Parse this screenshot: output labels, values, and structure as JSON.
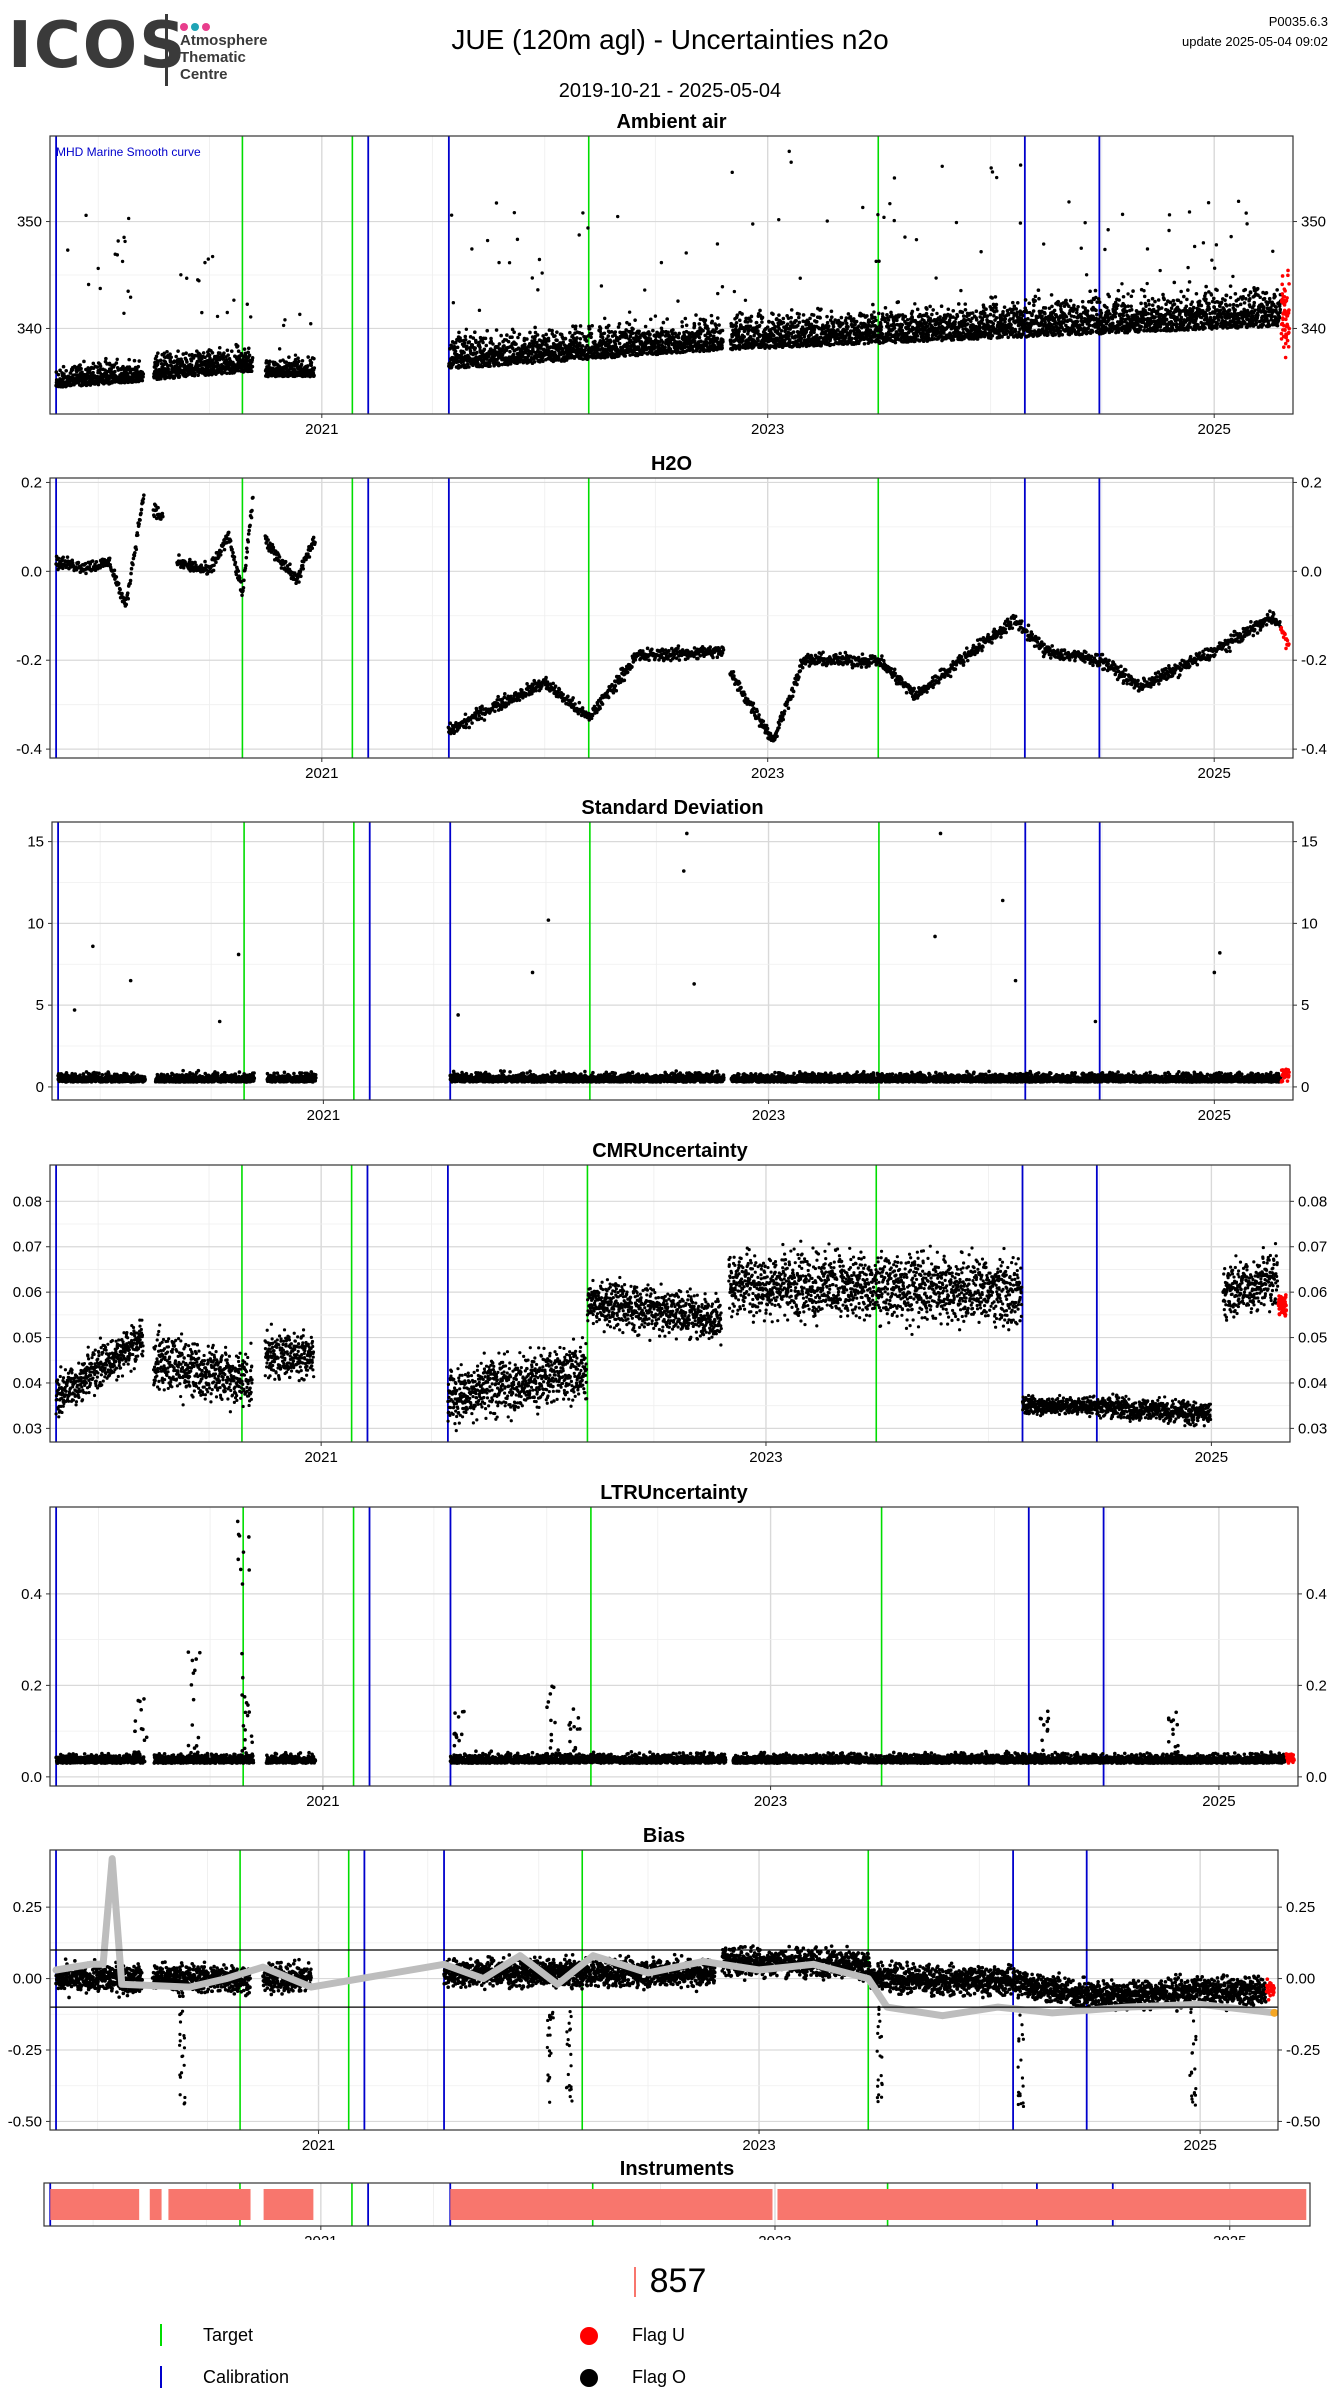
{
  "header": {
    "logo_text": "ICOS",
    "logo_subtitle_lines": [
      "Atmosphere",
      "Thematic",
      "Centre"
    ],
    "logo_dot_colors": [
      "#e83e8c",
      "#1fa4b5",
      "#e83e8c"
    ],
    "title": "JUE  (120m agl) - Uncertainties n2o",
    "date_range": "2019-10-21 - 2025-05-04",
    "version": "P0035.6.3",
    "update": "update  2025-05-04 09:02"
  },
  "colors": {
    "target": "#00dd00",
    "calibration": "#0000cc",
    "flag_u": "#ff0000",
    "flag_o": "#000000",
    "smooth": "#bdbdbd",
    "smooth_end": "#f5a623",
    "instrument": "#F8766D"
  },
  "x_axis": {
    "range": [
      "2019-10-14",
      "2025-05-10"
    ],
    "ticks": [
      {
        "date": "2021-01-01",
        "label": "2021"
      },
      {
        "date": "2023-01-01",
        "label": "2023"
      },
      {
        "date": "2025-01-01",
        "label": "2025"
      }
    ]
  },
  "events": {
    "target_dates": [
      "2020-08-24",
      "2021-02-20",
      "2022-03-14",
      "2023-07-01"
    ],
    "calibration_dates": [
      "2019-10-24",
      "2021-03-18",
      "2021-07-28",
      "2024-02-26",
      "2024-06-27"
    ]
  },
  "chart_data": [
    {
      "id": "ambient",
      "type": "scatter",
      "title": "Ambient air",
      "annotation": "MHD Marine Smooth curve",
      "ylim": [
        332,
        358
      ],
      "yticks": [
        340,
        350
      ],
      "right_axis": true,
      "segments": [
        {
          "start": "2019-10-24",
          "end": "2020-03-15",
          "base_start": 334.5,
          "base_end": 335.0,
          "noise": 1.4,
          "spikes": 16,
          "spike_max": 352
        },
        {
          "start": "2020-04-01",
          "end": "2020-09-10",
          "base_start": 335.2,
          "base_end": 336.0,
          "noise": 1.8,
          "spikes": 14,
          "spike_max": 347
        },
        {
          "start": "2020-10-01",
          "end": "2020-12-20",
          "base_start": 335.5,
          "base_end": 335.5,
          "noise": 1.2,
          "spikes": 6,
          "spike_max": 342
        },
        {
          "start": "2021-07-28",
          "end": "2022-10-20",
          "base_start": 336.2,
          "base_end": 338.0,
          "noise": 2.2,
          "spikes": 30,
          "spike_max": 352
        },
        {
          "start": "2022-11-01",
          "end": "2024-02-25",
          "base_start": 338.0,
          "base_end": 339.2,
          "noise": 2.4,
          "spikes": 36,
          "spike_max": 357
        },
        {
          "start": "2024-02-26",
          "end": "2025-04-20",
          "base_start": 339.2,
          "base_end": 340.2,
          "noise": 2.6,
          "spikes": 36,
          "spike_max": 352
        }
      ],
      "flag_u_segment": {
        "start": "2025-04-21",
        "end": "2025-05-04",
        "base": 342.0,
        "noise": 3.0
      }
    },
    {
      "id": "h2o",
      "type": "scatter",
      "title": "H2O",
      "ylim": [
        -0.42,
        0.21
      ],
      "yticks": [
        -0.4,
        -0.2,
        0.0,
        0.2
      ],
      "ytick_labels": [
        "-0.4",
        "-0.2",
        "0.0",
        "0.2"
      ],
      "right_axis": true,
      "series_points": [
        {
          "date": "2019-10-24",
          "value": 0.02
        },
        {
          "date": "2019-12-15",
          "value": 0.01
        },
        {
          "date": "2020-01-20",
          "value": 0.02
        },
        {
          "date": "2020-02-15",
          "value": -0.08
        },
        {
          "date": "2020-03-01",
          "value": 0.05
        },
        {
          "date": "2020-03-15",
          "value": 0.17
        },
        {
          "date": "2020-04-01",
          "value": 0.14
        },
        {
          "date": "2020-04-15",
          "value": 0.12
        },
        {
          "date": "2020-05-10",
          "value": 0.02
        },
        {
          "date": "2020-07-01",
          "value": 0.0
        },
        {
          "date": "2020-08-01",
          "value": 0.08
        },
        {
          "date": "2020-08-24",
          "value": -0.05
        },
        {
          "date": "2020-09-10",
          "value": 0.16
        },
        {
          "date": "2020-10-01",
          "value": 0.07
        },
        {
          "date": "2020-11-20",
          "value": -0.02
        },
        {
          "date": "2020-12-20",
          "value": 0.07
        },
        {
          "date": "2021-07-28",
          "value": -0.36
        },
        {
          "date": "2021-10-01",
          "value": -0.31
        },
        {
          "date": "2022-01-01",
          "value": -0.25
        },
        {
          "date": "2022-03-14",
          "value": -0.33
        },
        {
          "date": "2022-06-01",
          "value": -0.19
        },
        {
          "date": "2022-10-20",
          "value": -0.18
        },
        {
          "date": "2022-11-01",
          "value": -0.23
        },
        {
          "date": "2023-01-10",
          "value": -0.38
        },
        {
          "date": "2023-03-01",
          "value": -0.2
        },
        {
          "date": "2023-07-01",
          "value": -0.2
        },
        {
          "date": "2023-09-01",
          "value": -0.28
        },
        {
          "date": "2023-12-01",
          "value": -0.18
        },
        {
          "date": "2024-02-10",
          "value": -0.11
        },
        {
          "date": "2024-04-01",
          "value": -0.18
        },
        {
          "date": "2024-07-01",
          "value": -0.2
        },
        {
          "date": "2024-09-01",
          "value": -0.26
        },
        {
          "date": "2025-01-01",
          "value": -0.18
        },
        {
          "date": "2025-04-10",
          "value": -0.1
        },
        {
          "date": "2025-05-04",
          "value": -0.17
        }
      ],
      "gaps": [
        [
          "2020-03-16",
          "2020-03-31"
        ],
        [
          "2020-04-16",
          "2020-05-09"
        ],
        [
          "2020-09-11",
          "2020-09-30"
        ],
        [
          "2020-12-21",
          "2021-07-27"
        ],
        [
          "2022-10-21",
          "2022-10-31"
        ]
      ],
      "noise": 0.012
    },
    {
      "id": "stdev",
      "type": "scatter",
      "title": "Standard Deviation",
      "ylim": [
        -0.8,
        16.2
      ],
      "yticks": [
        0,
        5,
        10,
        15
      ],
      "right_axis": true,
      "segments_same_as": "ambient",
      "base": 0.3,
      "noise": 0.4,
      "outliers": [
        {
          "date": "2019-11-20",
          "value": 4.7
        },
        {
          "date": "2019-12-20",
          "value": 8.6
        },
        {
          "date": "2020-02-20",
          "value": 6.5
        },
        {
          "date": "2020-08-15",
          "value": 8.1
        },
        {
          "date": "2020-07-15",
          "value": 4.0
        },
        {
          "date": "2021-08-10",
          "value": 4.4
        },
        {
          "date": "2021-12-10",
          "value": 7.0
        },
        {
          "date": "2022-01-05",
          "value": 10.2
        },
        {
          "date": "2022-08-20",
          "value": 15.5
        },
        {
          "date": "2022-08-15",
          "value": 13.2
        },
        {
          "date": "2022-09-01",
          "value": 6.3
        },
        {
          "date": "2023-10-10",
          "value": 15.5
        },
        {
          "date": "2023-10-01",
          "value": 9.2
        },
        {
          "date": "2024-01-20",
          "value": 11.4
        },
        {
          "date": "2024-02-10",
          "value": 6.5
        },
        {
          "date": "2025-01-10",
          "value": 8.2
        },
        {
          "date": "2025-01-01",
          "value": 7.0
        },
        {
          "date": "2024-06-20",
          "value": 4.0
        }
      ]
    },
    {
      "id": "cmr",
      "type": "scatter",
      "title": "CMRUncertainty",
      "ylim": [
        0.027,
        0.088
      ],
      "yticks": [
        0.03,
        0.04,
        0.05,
        0.06,
        0.07,
        0.08
      ],
      "ytick_labels": [
        "0.03",
        "0.04",
        "0.05",
        "0.06",
        "0.07",
        "0.08"
      ],
      "right_axis": true,
      "segments": [
        {
          "start": "2019-10-24",
          "end": "2020-03-15",
          "base_start": 0.037,
          "base_end": 0.05,
          "noise": 0.004
        },
        {
          "start": "2020-04-01",
          "end": "2020-09-10",
          "base_start": 0.045,
          "base_end": 0.04,
          "noise": 0.005
        },
        {
          "start": "2020-10-01",
          "end": "2020-12-20",
          "base_start": 0.046,
          "base_end": 0.046,
          "noise": 0.004
        },
        {
          "start": "2021-07-28",
          "end": "2022-03-13",
          "base_start": 0.037,
          "base_end": 0.043,
          "noise": 0.005
        },
        {
          "start": "2022-03-14",
          "end": "2022-10-20",
          "base_start": 0.058,
          "base_end": 0.054,
          "noise": 0.004
        },
        {
          "start": "2022-11-01",
          "end": "2024-02-25",
          "base_start": 0.062,
          "base_end": 0.06,
          "noise": 0.006
        },
        {
          "start": "2024-02-26",
          "end": "2024-06-26",
          "base_start": 0.035,
          "base_end": 0.035,
          "noise": 0.0015
        },
        {
          "start": "2024-06-27",
          "end": "2024-12-31",
          "base_start": 0.035,
          "base_end": 0.033,
          "noise": 0.002
        },
        {
          "start": "2025-01-20",
          "end": "2025-04-20",
          "base_start": 0.06,
          "base_end": 0.063,
          "noise": 0.005
        }
      ],
      "flag_u_segment": {
        "start": "2025-04-21",
        "end": "2025-05-04",
        "base": 0.057,
        "noise": 0.002
      }
    },
    {
      "id": "ltr",
      "type": "scatter",
      "title": "LTRUncertainty",
      "ylim": [
        -0.02,
        0.59
      ],
      "yticks": [
        0.0,
        0.2,
        0.4
      ],
      "ytick_labels": [
        "0.0",
        "0.2",
        "0.4"
      ],
      "right_axis": true,
      "segments_same_as": "ambient",
      "base": 0.03,
      "noise": 0.015,
      "bumps": [
        {
          "date": "2020-03-10",
          "value": 0.18
        },
        {
          "date": "2020-06-05",
          "value": 0.28
        },
        {
          "date": "2020-08-24",
          "value": 0.57
        },
        {
          "date": "2020-09-01",
          "value": 0.16
        },
        {
          "date": "2021-08-10",
          "value": 0.15
        },
        {
          "date": "2022-01-10",
          "value": 0.2
        },
        {
          "date": "2022-02-15",
          "value": 0.16
        },
        {
          "date": "2024-03-20",
          "value": 0.17
        },
        {
          "date": "2024-10-20",
          "value": 0.15
        }
      ]
    },
    {
      "id": "bias",
      "type": "scatter",
      "title": "Bias",
      "ylim": [
        -0.53,
        0.45
      ],
      "yticks": [
        -0.5,
        -0.25,
        0.0,
        0.25
      ],
      "ytick_labels": [
        "-0.50",
        "-0.25",
        "0.00",
        "0.25"
      ],
      "hlines": [
        0.1,
        -0.1
      ],
      "right_axis": true,
      "segments_same_as": "ambient",
      "base_points": [
        {
          "date": "2019-10-24",
          "value": 0.0
        },
        {
          "date": "2020-12-20",
          "value": 0.0
        },
        {
          "date": "2021-07-28",
          "value": 0.02
        },
        {
          "date": "2022-10-20",
          "value": 0.02
        },
        {
          "date": "2022-11-01",
          "value": 0.06
        },
        {
          "date": "2023-07-01",
          "value": 0.05
        },
        {
          "date": "2023-07-05",
          "value": 0.0
        },
        {
          "date": "2024-02-25",
          "value": -0.01
        },
        {
          "date": "2024-06-27",
          "value": -0.06
        },
        {
          "date": "2025-05-04",
          "value": -0.04
        }
      ],
      "noise": 0.04,
      "smooth_curve": [
        {
          "date": "2019-10-24",
          "value": 0.03
        },
        {
          "date": "2019-12-20",
          "value": 0.05
        },
        {
          "date": "2020-01-10",
          "value": 0.05
        },
        {
          "date": "2020-01-25",
          "value": 0.42
        },
        {
          "date": "2020-02-10",
          "value": -0.02
        },
        {
          "date": "2020-06-01",
          "value": -0.03
        },
        {
          "date": "2020-08-01",
          "value": 0.0
        },
        {
          "date": "2020-10-01",
          "value": 0.04
        },
        {
          "date": "2020-12-20",
          "value": -0.03
        },
        {
          "date": "2021-07-28",
          "value": 0.05
        },
        {
          "date": "2021-10-01",
          "value": 0.0
        },
        {
          "date": "2021-12-01",
          "value": 0.08
        },
        {
          "date": "2022-02-01",
          "value": -0.02
        },
        {
          "date": "2022-04-01",
          "value": 0.08
        },
        {
          "date": "2022-07-01",
          "value": 0.02
        },
        {
          "date": "2022-10-01",
          "value": 0.06
        },
        {
          "date": "2023-01-01",
          "value": 0.03
        },
        {
          "date": "2023-04-01",
          "value": 0.05
        },
        {
          "date": "2023-07-01",
          "value": 0.0
        },
        {
          "date": "2023-08-01",
          "value": -0.1
        },
        {
          "date": "2023-11-01",
          "value": -0.13
        },
        {
          "date": "2024-02-01",
          "value": -0.1
        },
        {
          "date": "2024-05-01",
          "value": -0.12
        },
        {
          "date": "2024-09-01",
          "value": -0.1
        },
        {
          "date": "2025-01-01",
          "value": -0.09
        },
        {
          "date": "2025-05-04",
          "value": -0.12
        }
      ],
      "outlier_dates": [
        "2020-05-20",
        "2022-01-20",
        "2022-02-20",
        "2023-07-20",
        "2024-03-10",
        "2024-12-20"
      ]
    },
    {
      "id": "instruments",
      "type": "bar",
      "title": "Instruments",
      "blocks": [
        {
          "start": "2019-10-24",
          "end": "2020-03-15"
        },
        {
          "start": "2020-04-01",
          "end": "2020-04-20"
        },
        {
          "start": "2020-05-01",
          "end": "2020-09-10"
        },
        {
          "start": "2020-10-01",
          "end": "2020-12-20"
        },
        {
          "start": "2021-07-28",
          "end": "2022-12-28"
        },
        {
          "start": "2023-01-05",
          "end": "2025-05-04"
        }
      ]
    }
  ],
  "legend": {
    "count": "857",
    "items": [
      {
        "label": "Target",
        "kind": "line",
        "color_key": "target"
      },
      {
        "label": "Calibration",
        "kind": "line",
        "color_key": "calibration"
      },
      {
        "label": "Flag U",
        "kind": "dot",
        "color_key": "flag_u"
      },
      {
        "label": "Flag O",
        "kind": "dot",
        "color_key": "flag_o"
      }
    ]
  }
}
